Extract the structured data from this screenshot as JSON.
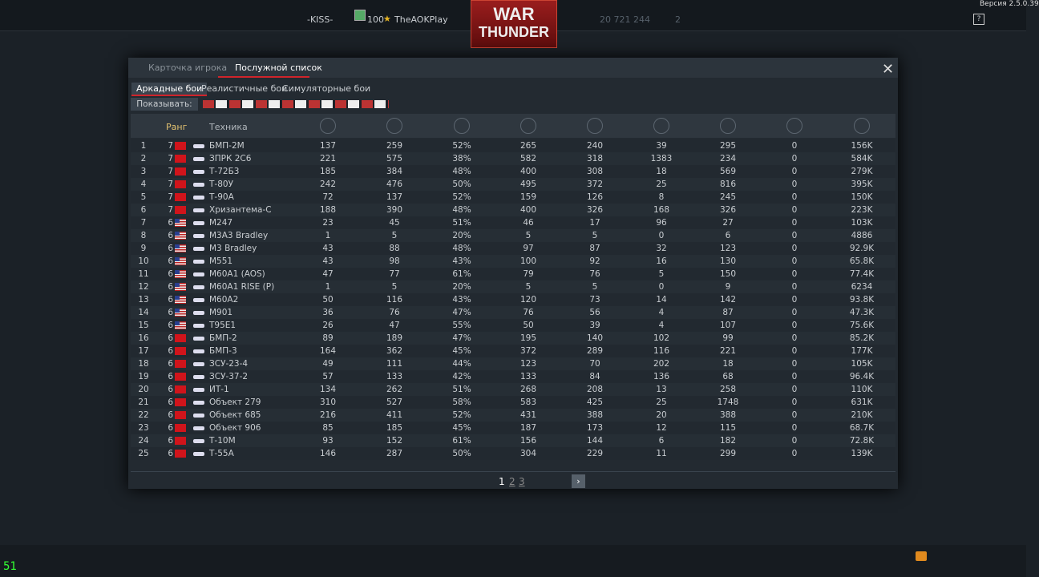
{
  "top_bar": {
    "clan": "-KISS-",
    "level": "100",
    "player": "TheAOKPlay",
    "balance": "20 721 244",
    "gold": "2",
    "version": "Версия 2.5.0.39"
  },
  "logo": {
    "line1": "WAR",
    "line2": "THUNDER"
  },
  "window": {
    "tabs": [
      "Карточка игрока",
      "Послужной список"
    ],
    "modes": [
      "Аркадные бои",
      "Реалистичные бои",
      "Симуляторные бои"
    ],
    "filter_label": "Показывать:",
    "table": {
      "headers": [
        "Ранг",
        "Техника"
      ],
      "rows": [
        {
          "flag": "ussr",
          "cells": [
            "1",
            "7",
            "БМП-2М",
            "137",
            "259",
            "52%",
            "265",
            "240",
            "39",
            "295",
            "0",
            "156K"
          ]
        },
        {
          "flag": "ussr",
          "cells": [
            "2",
            "7",
            "ЗПРК 2С6",
            "221",
            "575",
            "38%",
            "582",
            "318",
            "1383",
            "234",
            "0",
            "584K"
          ]
        },
        {
          "flag": "ussr",
          "cells": [
            "3",
            "7",
            "Т-72Б3",
            "185",
            "384",
            "48%",
            "400",
            "308",
            "18",
            "569",
            "0",
            "279K"
          ]
        },
        {
          "flag": "ussr",
          "cells": [
            "4",
            "7",
            "Т-80У",
            "242",
            "476",
            "50%",
            "495",
            "372",
            "25",
            "816",
            "0",
            "395K"
          ]
        },
        {
          "flag": "ussr",
          "cells": [
            "5",
            "7",
            "Т-90А",
            "72",
            "137",
            "52%",
            "159",
            "126",
            "8",
            "245",
            "0",
            "150K"
          ]
        },
        {
          "flag": "ussr",
          "cells": [
            "6",
            "7",
            "Хризантема-С",
            "188",
            "390",
            "48%",
            "400",
            "326",
            "168",
            "326",
            "0",
            "223K"
          ]
        },
        {
          "flag": "usa",
          "cells": [
            "7",
            "6",
            "M247",
            "23",
            "45",
            "51%",
            "46",
            "17",
            "96",
            "27",
            "0",
            "103K"
          ]
        },
        {
          "flag": "usa",
          "cells": [
            "8",
            "6",
            "M3A3 Bradley",
            "1",
            "5",
            "20%",
            "5",
            "5",
            "0",
            "6",
            "0",
            "4886"
          ]
        },
        {
          "flag": "usa",
          "cells": [
            "9",
            "6",
            "M3 Bradley",
            "43",
            "88",
            "48%",
            "97",
            "87",
            "32",
            "123",
            "0",
            "92.9K"
          ]
        },
        {
          "flag": "usa",
          "cells": [
            "10",
            "6",
            "M551",
            "43",
            "98",
            "43%",
            "100",
            "92",
            "16",
            "130",
            "0",
            "65.8K"
          ]
        },
        {
          "flag": "usa",
          "cells": [
            "11",
            "6",
            "M60A1 (AOS)",
            "47",
            "77",
            "61%",
            "79",
            "76",
            "5",
            "150",
            "0",
            "77.4K"
          ]
        },
        {
          "flag": "usa",
          "cells": [
            "12",
            "6",
            "M60A1 RISE (P)",
            "1",
            "5",
            "20%",
            "5",
            "5",
            "0",
            "9",
            "0",
            "6234"
          ]
        },
        {
          "flag": "usa",
          "cells": [
            "13",
            "6",
            "M60A2",
            "50",
            "116",
            "43%",
            "120",
            "73",
            "14",
            "142",
            "0",
            "93.8K"
          ]
        },
        {
          "flag": "usa",
          "cells": [
            "14",
            "6",
            "M901",
            "36",
            "76",
            "47%",
            "76",
            "56",
            "4",
            "87",
            "0",
            "47.3K"
          ]
        },
        {
          "flag": "usa",
          "cells": [
            "15",
            "6",
            "T95E1",
            "26",
            "47",
            "55%",
            "50",
            "39",
            "4",
            "107",
            "0",
            "75.6K"
          ]
        },
        {
          "flag": "ussr",
          "cells": [
            "16",
            "6",
            "БМП-2",
            "89",
            "189",
            "47%",
            "195",
            "140",
            "102",
            "99",
            "0",
            "85.2K"
          ]
        },
        {
          "flag": "ussr",
          "cells": [
            "17",
            "6",
            "БМП-3",
            "164",
            "362",
            "45%",
            "372",
            "289",
            "116",
            "221",
            "0",
            "177K"
          ]
        },
        {
          "flag": "ussr",
          "cells": [
            "18",
            "6",
            "ЗСУ-23-4",
            "49",
            "111",
            "44%",
            "123",
            "70",
            "202",
            "18",
            "0",
            "105K"
          ]
        },
        {
          "flag": "ussr",
          "cells": [
            "19",
            "6",
            "ЗСУ-37-2",
            "57",
            "133",
            "42%",
            "133",
            "84",
            "136",
            "68",
            "0",
            "96.4K"
          ]
        },
        {
          "flag": "ussr",
          "cells": [
            "20",
            "6",
            "ИТ-1",
            "134",
            "262",
            "51%",
            "268",
            "208",
            "13",
            "258",
            "0",
            "110K"
          ]
        },
        {
          "flag": "ussr",
          "cells": [
            "21",
            "6",
            "Объект 279",
            "310",
            "527",
            "58%",
            "583",
            "425",
            "25",
            "1748",
            "0",
            "631K"
          ]
        },
        {
          "flag": "ussr",
          "cells": [
            "22",
            "6",
            "Объект 685",
            "216",
            "411",
            "52%",
            "431",
            "388",
            "20",
            "388",
            "0",
            "210K"
          ]
        },
        {
          "flag": "ussr",
          "cells": [
            "23",
            "6",
            "Объект 906",
            "85",
            "185",
            "45%",
            "187",
            "173",
            "12",
            "115",
            "0",
            "68.7K"
          ]
        },
        {
          "flag": "ussr",
          "cells": [
            "24",
            "6",
            "Т-10М",
            "93",
            "152",
            "61%",
            "156",
            "144",
            "6",
            "182",
            "0",
            "72.8K"
          ]
        },
        {
          "flag": "ussr",
          "cells": [
            "25",
            "6",
            "Т-55А",
            "146",
            "287",
            "50%",
            "304",
            "229",
            "11",
            "299",
            "0",
            "139K"
          ]
        }
      ]
    },
    "pages": [
      "1",
      "2",
      "3"
    ]
  },
  "fps": "51"
}
